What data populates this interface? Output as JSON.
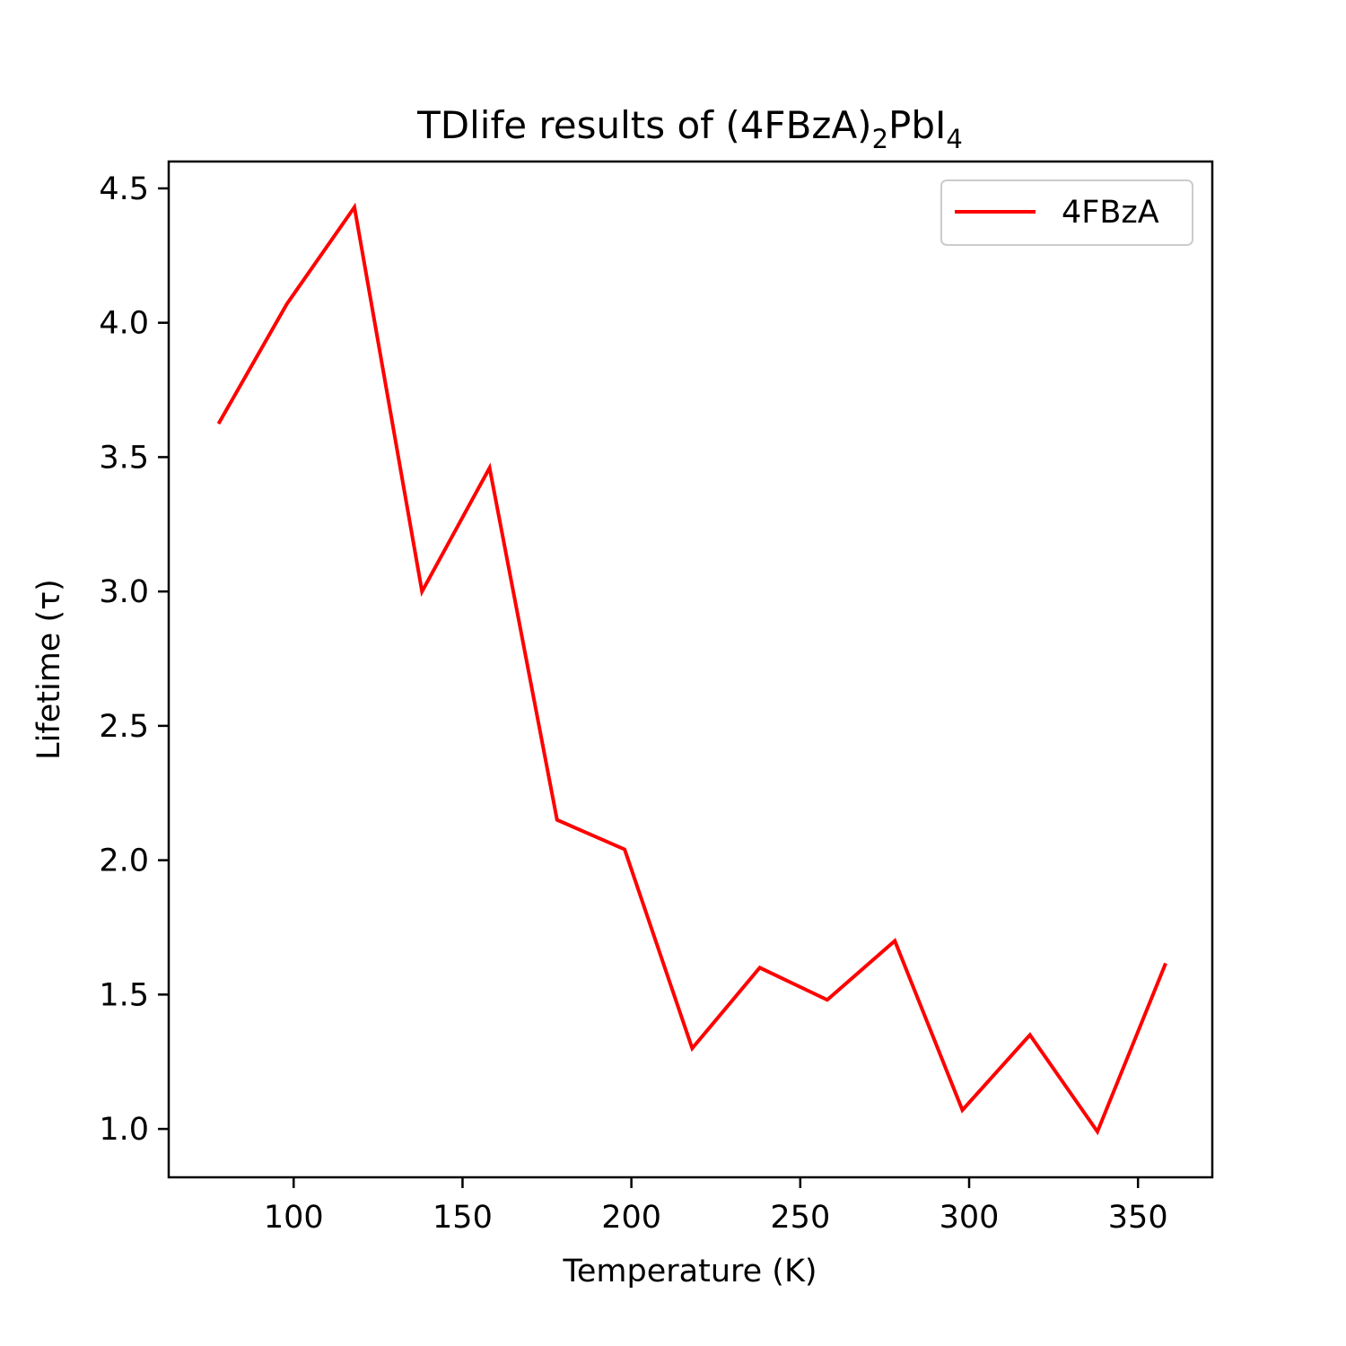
{
  "chart_data": {
    "type": "line",
    "title": {
      "main": "TDlife results of (4FBzA)",
      "sub1": "2",
      "mid": "PbI",
      "sub2": "4"
    },
    "xlabel": "Temperature (K)",
    "ylabel": "Lifetime (τ)",
    "xlim": [
      63,
      372
    ],
    "ylim": [
      0.82,
      4.6
    ],
    "xticks": [
      100,
      150,
      200,
      250,
      300,
      350
    ],
    "xtick_labels": [
      "100",
      "150",
      "200",
      "250",
      "300",
      "350"
    ],
    "yticks": [
      1.0,
      1.5,
      2.0,
      2.5,
      3.0,
      3.5,
      4.0,
      4.5
    ],
    "ytick_labels": [
      "1.0",
      "1.5",
      "2.0",
      "2.5",
      "3.0",
      "3.5",
      "4.0",
      "4.5"
    ],
    "legend_position": "top-right",
    "grid": false,
    "series": [
      {
        "name": "4FBzA",
        "color": "#ff0000",
        "x": [
          78,
          98,
          118,
          138,
          158,
          178,
          198,
          218,
          238,
          258,
          278,
          298,
          318,
          338,
          358
        ],
        "y": [
          3.63,
          4.07,
          4.43,
          3.0,
          3.46,
          2.15,
          2.04,
          1.3,
          1.6,
          1.48,
          1.7,
          1.07,
          1.35,
          0.99,
          1.61
        ]
      }
    ]
  }
}
